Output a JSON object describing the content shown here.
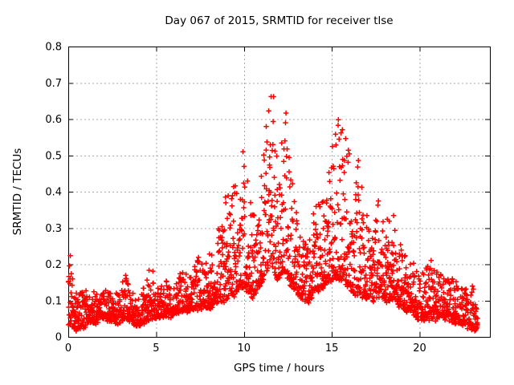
{
  "page": {
    "background": "#ffffff"
  },
  "chart_data": {
    "type": "scatter",
    "title": "Day 067 of 2015, SRMTID for receiver tlse",
    "xlabel": "GPS time / hours",
    "ylabel": "SRMTID / TECUs",
    "xlim": [
      0,
      24
    ],
    "ylim": [
      0,
      0.8
    ],
    "xticks": [
      0,
      5,
      10,
      15,
      20
    ],
    "xtick_labels": [
      "0",
      "5",
      "10",
      "15",
      "20"
    ],
    "yticks": [
      0,
      0.1,
      0.2,
      0.3,
      0.4,
      0.5,
      0.6,
      0.7,
      0.8
    ],
    "ytick_labels": [
      "0",
      "0.1",
      "0.2",
      "0.3",
      "0.4",
      "0.5",
      "0.6",
      "0.7",
      "0.8"
    ],
    "grid": true,
    "legend": "none",
    "marker": "plus",
    "marker_color": "#ff0000",
    "grid_color": "#a8a8a8",
    "frame_color": "#000000",
    "series_name": "SRMTID",
    "sampling": {
      "t_start": 0,
      "t_end": 23.3,
      "dt": 0.01,
      "seed": 7,
      "shape_exponent": 2.1,
      "jitter": 0.015,
      "x_jitter": 0.02
    },
    "envelope_columns": [
      "hour",
      "typical_min",
      "max"
    ],
    "envelope": [
      [
        0.0,
        0.04,
        0.28
      ],
      [
        0.15,
        0.03,
        0.22
      ],
      [
        0.3,
        0.02,
        0.16
      ],
      [
        0.6,
        0.02,
        0.13
      ],
      [
        0.9,
        0.03,
        0.14
      ],
      [
        1.2,
        0.04,
        0.12
      ],
      [
        1.5,
        0.04,
        0.13
      ],
      [
        1.8,
        0.05,
        0.12
      ],
      [
        2.1,
        0.05,
        0.13
      ],
      [
        2.4,
        0.05,
        0.12
      ],
      [
        2.7,
        0.04,
        0.12
      ],
      [
        3.0,
        0.04,
        0.14
      ],
      [
        3.2,
        0.05,
        0.19
      ],
      [
        3.4,
        0.05,
        0.15
      ],
      [
        3.7,
        0.04,
        0.12
      ],
      [
        4.0,
        0.03,
        0.11
      ],
      [
        4.3,
        0.04,
        0.14
      ],
      [
        4.6,
        0.05,
        0.19
      ],
      [
        4.8,
        0.05,
        0.2
      ],
      [
        5.0,
        0.05,
        0.13
      ],
      [
        5.3,
        0.06,
        0.14
      ],
      [
        5.6,
        0.06,
        0.16
      ],
      [
        5.9,
        0.06,
        0.15
      ],
      [
        6.2,
        0.07,
        0.17
      ],
      [
        6.5,
        0.07,
        0.18
      ],
      [
        6.8,
        0.07,
        0.17
      ],
      [
        7.1,
        0.08,
        0.19
      ],
      [
        7.4,
        0.08,
        0.24
      ],
      [
        7.7,
        0.08,
        0.2
      ],
      [
        8.0,
        0.08,
        0.22
      ],
      [
        8.3,
        0.09,
        0.27
      ],
      [
        8.6,
        0.09,
        0.33
      ],
      [
        8.9,
        0.1,
        0.36
      ],
      [
        9.1,
        0.11,
        0.46
      ],
      [
        9.4,
        0.11,
        0.42
      ],
      [
        9.6,
        0.13,
        0.48
      ],
      [
        9.8,
        0.14,
        0.54
      ],
      [
        10.0,
        0.14,
        0.5
      ],
      [
        10.2,
        0.12,
        0.44
      ],
      [
        10.5,
        0.11,
        0.36
      ],
      [
        10.8,
        0.13,
        0.4
      ],
      [
        11.0,
        0.15,
        0.45
      ],
      [
        11.3,
        0.18,
        0.62
      ],
      [
        11.5,
        0.2,
        0.71
      ],
      [
        11.7,
        0.18,
        0.66
      ],
      [
        11.9,
        0.16,
        0.48
      ],
      [
        12.1,
        0.17,
        0.55
      ],
      [
        12.3,
        0.18,
        0.69
      ],
      [
        12.5,
        0.16,
        0.58
      ],
      [
        12.7,
        0.14,
        0.45
      ],
      [
        12.9,
        0.13,
        0.38
      ],
      [
        13.1,
        0.12,
        0.32
      ],
      [
        13.4,
        0.1,
        0.27
      ],
      [
        13.7,
        0.1,
        0.26
      ],
      [
        14.0,
        0.12,
        0.36
      ],
      [
        14.3,
        0.13,
        0.42
      ],
      [
        14.6,
        0.14,
        0.36
      ],
      [
        14.8,
        0.15,
        0.45
      ],
      [
        15.0,
        0.16,
        0.58
      ],
      [
        15.2,
        0.17,
        0.63
      ],
      [
        15.4,
        0.16,
        0.6
      ],
      [
        15.6,
        0.15,
        0.62
      ],
      [
        15.8,
        0.15,
        0.65
      ],
      [
        16.0,
        0.14,
        0.52
      ],
      [
        16.2,
        0.12,
        0.44
      ],
      [
        16.5,
        0.12,
        0.51
      ],
      [
        16.8,
        0.11,
        0.4
      ],
      [
        17.0,
        0.11,
        0.35
      ],
      [
        17.3,
        0.1,
        0.3
      ],
      [
        17.6,
        0.11,
        0.4
      ],
      [
        17.9,
        0.1,
        0.36
      ],
      [
        18.2,
        0.1,
        0.33
      ],
      [
        18.5,
        0.11,
        0.38
      ],
      [
        18.8,
        0.09,
        0.3
      ],
      [
        19.1,
        0.08,
        0.26
      ],
      [
        19.4,
        0.07,
        0.22
      ],
      [
        19.7,
        0.06,
        0.2
      ],
      [
        20.0,
        0.05,
        0.17
      ],
      [
        20.3,
        0.05,
        0.18
      ],
      [
        20.6,
        0.05,
        0.22
      ],
      [
        20.9,
        0.05,
        0.19
      ],
      [
        21.1,
        0.06,
        0.2
      ],
      [
        21.4,
        0.05,
        0.17
      ],
      [
        21.7,
        0.05,
        0.16
      ],
      [
        22.0,
        0.04,
        0.16
      ],
      [
        22.3,
        0.04,
        0.14
      ],
      [
        22.6,
        0.03,
        0.13
      ],
      [
        22.9,
        0.03,
        0.15
      ],
      [
        23.1,
        0.02,
        0.13
      ],
      [
        23.3,
        0.02,
        0.1
      ]
    ],
    "peaks": [
      {
        "hour": 11.5,
        "value": 0.71
      },
      {
        "hour": 12.3,
        "value": 0.69
      },
      {
        "hour": 15.8,
        "value": 0.65
      },
      {
        "hour": 9.8,
        "value": 0.54
      },
      {
        "hour": 0.05,
        "value": 0.28
      }
    ]
  }
}
